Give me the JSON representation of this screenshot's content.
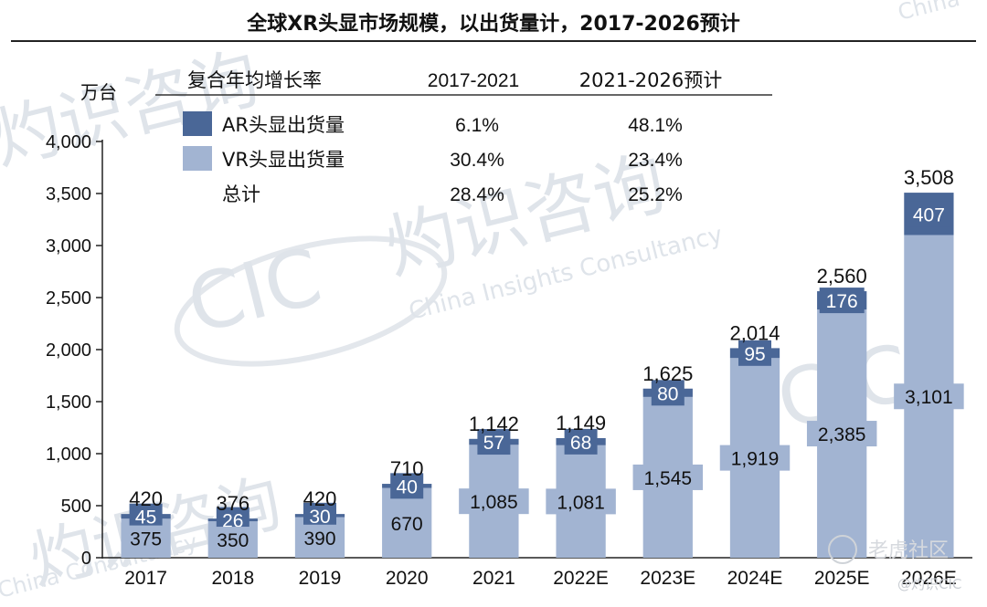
{
  "title": "全球XR头显市场规模，以出货量计，2017-2026预计",
  "chart_data": {
    "type": "bar",
    "stacked": true,
    "unit_label": "万台",
    "categories": [
      "2017",
      "2018",
      "2019",
      "2020",
      "2021",
      "2022E",
      "2023E",
      "2024E",
      "2025E",
      "2026E"
    ],
    "series": [
      {
        "name": "VR头显出货量",
        "color": "#a2b4d2",
        "values": [
          375,
          350,
          390,
          670,
          1085,
          1081,
          1545,
          1919,
          2385,
          3101
        ]
      },
      {
        "name": "AR头显出货量",
        "color": "#4a6797",
        "values": [
          45,
          26,
          30,
          40,
          57,
          68,
          80,
          95,
          176,
          407
        ]
      }
    ],
    "totals": [
      420,
      376,
      420,
      710,
      1142,
      1149,
      1625,
      2014,
      2560,
      3508
    ],
    "value_labels": {
      "vr": [
        "375",
        "350",
        "390",
        "670",
        "1,085",
        "1,081",
        "1,545",
        "1,919",
        "2,385",
        "3,101"
      ],
      "ar": [
        "45",
        "26",
        "30",
        "40",
        "57",
        "68",
        "80",
        "95",
        "176",
        "407"
      ],
      "totals": [
        "420",
        "376",
        "420",
        "710",
        "1,142",
        "1,149",
        "1,625",
        "2,014",
        "2,560",
        "3,508"
      ]
    },
    "ylim": [
      0,
      4000
    ],
    "yticks": [
      0,
      500,
      1000,
      1500,
      2000,
      2500,
      3000,
      3500,
      4000
    ],
    "ytick_labels": [
      "0",
      "500",
      "1,000",
      "1,500",
      "2,000",
      "2,500",
      "3,000",
      "3,500",
      "4,000"
    ],
    "legend_position": "top-left",
    "gridlines": false
  },
  "cagr_table": {
    "header": {
      "label": "复合年均增长率",
      "period1": "2017-2021",
      "period2": "2021-2026预计"
    },
    "rows": [
      {
        "label": "AR头显出货量",
        "p1": "6.1%",
        "p2": "48.1%"
      },
      {
        "label": "VR头显出货量",
        "p1": "30.4%",
        "p2": "23.4%"
      },
      {
        "label": "总计",
        "p1": "28.4%",
        "p2": "25.2%"
      }
    ]
  },
  "watermark": {
    "brand_cn": "灼识咨询",
    "brand_en": "China Insights Consultancy",
    "logo": "CIC",
    "corner_text": "China",
    "corner_text_bottom": "China Consultancy"
  },
  "source_badge": {
    "text": "老虎社区",
    "handle": "@灼识CIC"
  }
}
